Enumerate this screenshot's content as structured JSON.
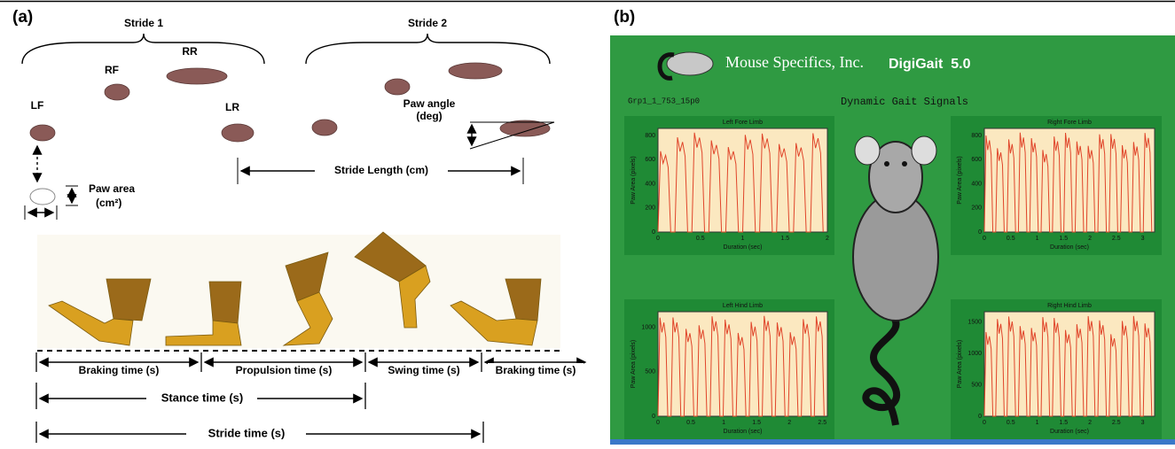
{
  "panel_a": {
    "label": "(a)",
    "strides": [
      "Stride 1",
      "Stride 2"
    ],
    "paws": [
      "LF",
      "RF",
      "RR",
      "LR"
    ],
    "paw_angle": [
      "Paw angle",
      "(deg)"
    ],
    "stride_length": "Stride Length (cm)",
    "paw_area": [
      "Paw area",
      "(cm²)"
    ],
    "phases": [
      "Braking time (s)",
      "Propulsion time (s)",
      "Swing time (s)",
      "Braking time (s)"
    ],
    "stance": "Stance time (s)",
    "stride_time": "Stride time (s)"
  },
  "panel_b": {
    "label": "(b)",
    "brand": "Mouse Specifics, Inc.",
    "product": "DigiGait  5.0",
    "file_id": "Grp1_1_753_15p0",
    "title": "Dynamic Gait Signals",
    "plots": [
      {
        "title": "Left Fore Limb",
        "y_label": "Paw Area (pixels)",
        "x_label": "Duration (sec)",
        "yticks": [
          "0",
          "200",
          "400",
          "600",
          "800"
        ],
        "xticks": [
          "0",
          "0.5",
          "1",
          "1.5",
          "2"
        ]
      },
      {
        "title": "Right Fore Limb",
        "y_label": "Paw Area (pixels)",
        "x_label": "Duration (sec)",
        "yticks": [
          "0",
          "200",
          "400",
          "600",
          "800"
        ],
        "xticks": [
          "0",
          "0.5",
          "1",
          "1.5",
          "2",
          "2.5",
          "3"
        ]
      },
      {
        "title": "Left Hind Limb",
        "y_label": "Paw Area (pixels)",
        "x_label": "Duration (sec)",
        "yticks": [
          "0",
          "500",
          "1000"
        ],
        "xticks": [
          "0",
          "0.5",
          "1",
          "1.5",
          "2",
          "2.5"
        ]
      },
      {
        "title": "Right Hind Limb",
        "y_label": "Paw Area (pixels)",
        "x_label": "Duration (sec)",
        "yticks": [
          "0",
          "500",
          "1000",
          "1500"
        ],
        "xticks": [
          "0",
          "0.5",
          "1",
          "1.5",
          "2",
          "2.5",
          "3"
        ]
      }
    ]
  }
}
